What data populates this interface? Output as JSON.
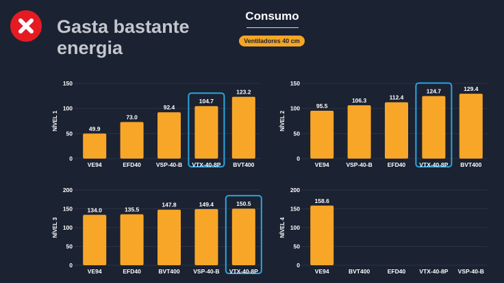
{
  "header": {
    "title_line1": "Gasta bastante",
    "title_line2": "energia",
    "status_icon": "close-icon",
    "consumo": "Consumo",
    "badge": "Ventiladores 40 cm"
  },
  "colors": {
    "bar": "#f8a628",
    "highlight": "#2aa7e0",
    "background": "#1b2232",
    "negative": "#e51b23"
  },
  "chart_data": [
    {
      "type": "bar",
      "ylabel": "NÍVEL 1",
      "ylim": [
        0,
        150
      ],
      "yticks": [
        0,
        50,
        100,
        150
      ],
      "categories": [
        "VE94",
        "EFD40",
        "VSP-40-B",
        "VTX-40-8P",
        "BVT400"
      ],
      "values": [
        49.9,
        73.0,
        92.4,
        104.7,
        123.2
      ],
      "labels": [
        "49.9",
        "73.0",
        "92.4",
        "104.7",
        "123.2"
      ],
      "highlight": "VTX-40-8P",
      "grid": true
    },
    {
      "type": "bar",
      "ylabel": "NÍVEL 2",
      "ylim": [
        0,
        150
      ],
      "yticks": [
        0,
        50,
        100,
        150
      ],
      "categories": [
        "VE94",
        "VSP-40-B",
        "EFD40",
        "VTX-40-8P",
        "BVT400"
      ],
      "values": [
        95.5,
        106.3,
        112.4,
        124.7,
        129.4
      ],
      "labels": [
        "95.5",
        "106.3",
        "112.4",
        "124.7",
        "129.4"
      ],
      "highlight": "VTX-40-8P",
      "grid": true
    },
    {
      "type": "bar",
      "ylabel": "NÍVEL 3",
      "ylim": [
        0,
        200
      ],
      "yticks": [
        0,
        50,
        100,
        150,
        200
      ],
      "categories": [
        "VE94",
        "EFD40",
        "BVT400",
        "VSP-40-B",
        "VTX-40-8P"
      ],
      "values": [
        134.0,
        135.5,
        147.8,
        149.4,
        150.5
      ],
      "labels": [
        "134.0",
        "135.5",
        "147.8",
        "149.4",
        "150.5"
      ],
      "highlight": "VTX-40-8P",
      "grid": true
    },
    {
      "type": "bar",
      "ylabel": "NÍVEL 4",
      "ylim": [
        0,
        200
      ],
      "yticks": [
        0,
        50,
        100,
        150,
        200
      ],
      "categories": [
        "VE94",
        "BVT400",
        "EFD40",
        "VTX-40-8P",
        "VSP-40-B"
      ],
      "values": [
        158.6,
        null,
        null,
        null,
        null
      ],
      "labels": [
        "158.6",
        "",
        "",
        "",
        ""
      ],
      "highlight": null,
      "grid": true
    }
  ]
}
